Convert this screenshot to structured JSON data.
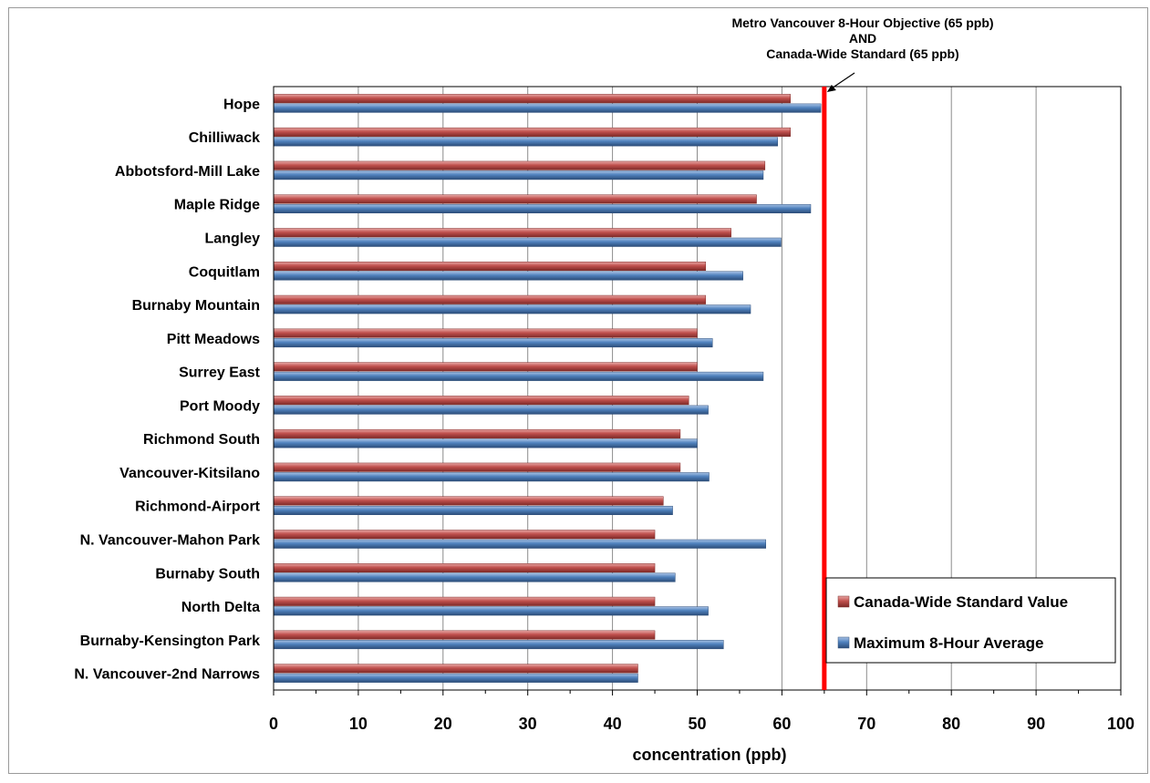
{
  "chart_data": {
    "type": "bar",
    "orientation": "horizontal",
    "categories": [
      "Hope",
      "Chilliwack",
      "Abbotsford-Mill Lake",
      "Maple Ridge",
      "Langley",
      "Coquitlam",
      "Burnaby Mountain",
      "Pitt Meadows",
      "Surrey East",
      "Port Moody",
      "Richmond South",
      "Vancouver-Kitsilano",
      "Richmond-Airport",
      "N. Vancouver-Mahon Park",
      "Burnaby South",
      "North Delta",
      "Burnaby-Kensington Park",
      "N. Vancouver-2nd Narrows"
    ],
    "series": [
      {
        "name": "Canada-Wide Standard Value",
        "color": "#c0504d",
        "values": [
          61,
          61,
          58,
          57,
          54,
          51,
          51,
          50,
          50,
          49,
          48,
          48,
          46,
          45,
          45,
          45,
          45,
          43
        ]
      },
      {
        "name": "Maximum 8-Hour Average",
        "color": "#4f81bd",
        "values": [
          64.6,
          59.5,
          57.8,
          63.4,
          59.9,
          55.4,
          56.3,
          51.8,
          57.8,
          51.3,
          50.0,
          51.4,
          47.1,
          58.1,
          47.4,
          51.3,
          53.1,
          43.0
        ]
      }
    ],
    "xlabel": "concentration (ppb)",
    "ylabel": "",
    "xlim": [
      0,
      100
    ],
    "xticks": [
      0,
      10,
      20,
      30,
      40,
      50,
      60,
      70,
      80,
      90,
      100
    ],
    "grid": "vertical",
    "legend": "bottom-right",
    "reference_line": {
      "value": 65,
      "color": "#ff0000",
      "label_lines": [
        "Metro Vancouver 8-Hour  Objective (65 ppb)",
        "AND",
        "Canada-Wide Standard (65 ppb)"
      ]
    }
  }
}
